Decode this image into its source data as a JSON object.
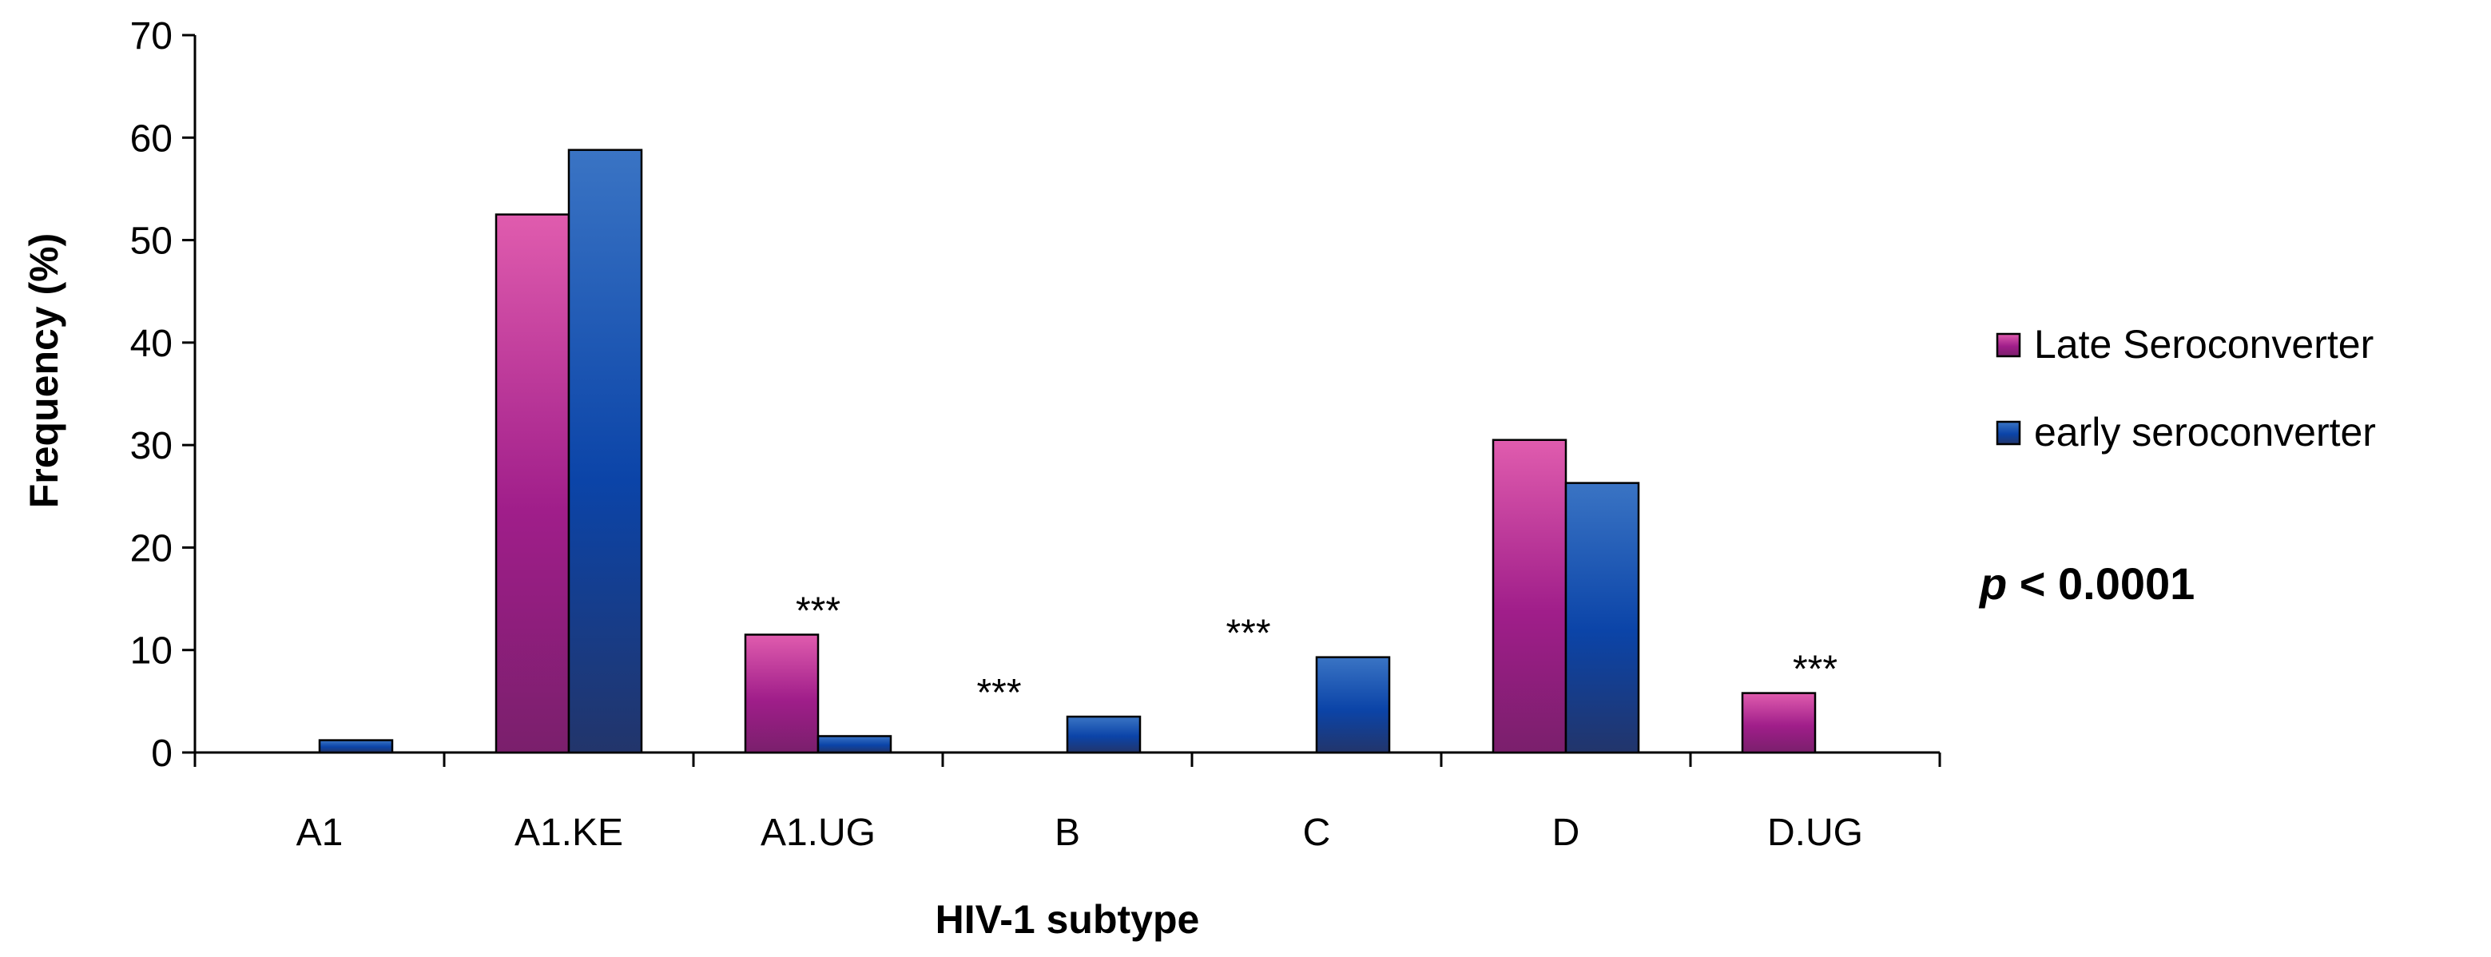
{
  "chart_data": {
    "type": "bar",
    "title": "",
    "xlabel": "HIV-1 subtype",
    "ylabel": "Frequency (%)",
    "ylim": [
      0,
      70
    ],
    "yticks": [
      0,
      10,
      20,
      30,
      40,
      50,
      60,
      70
    ],
    "categories": [
      "A1",
      "A1.KE",
      "A1.UG",
      "B",
      "C",
      "D",
      "D.UG"
    ],
    "series": [
      {
        "name": "Late Seroconverter",
        "values": [
          0,
          52.5,
          11.5,
          0,
          0,
          30.5,
          5.8
        ]
      },
      {
        "name": "early seroconverter",
        "values": [
          1.2,
          58.8,
          1.6,
          3.5,
          9.3,
          26.3,
          0
        ]
      }
    ],
    "annotations": [
      {
        "category": "A1.UG",
        "text": "***"
      },
      {
        "category": "B",
        "text": "***"
      },
      {
        "category": "C",
        "text": "***"
      },
      {
        "category": "D.UG",
        "text": "***"
      }
    ],
    "p_value": {
      "prefix": "p",
      "text": " < 0.0001"
    },
    "legend_position": "right"
  },
  "colors": {
    "late": [
      "#e05cae",
      "#a01e8a",
      "#7a1f6c"
    ],
    "early": [
      "#3a74c4",
      "#0b44a8",
      "#22356b"
    ],
    "axis": "#000000"
  }
}
